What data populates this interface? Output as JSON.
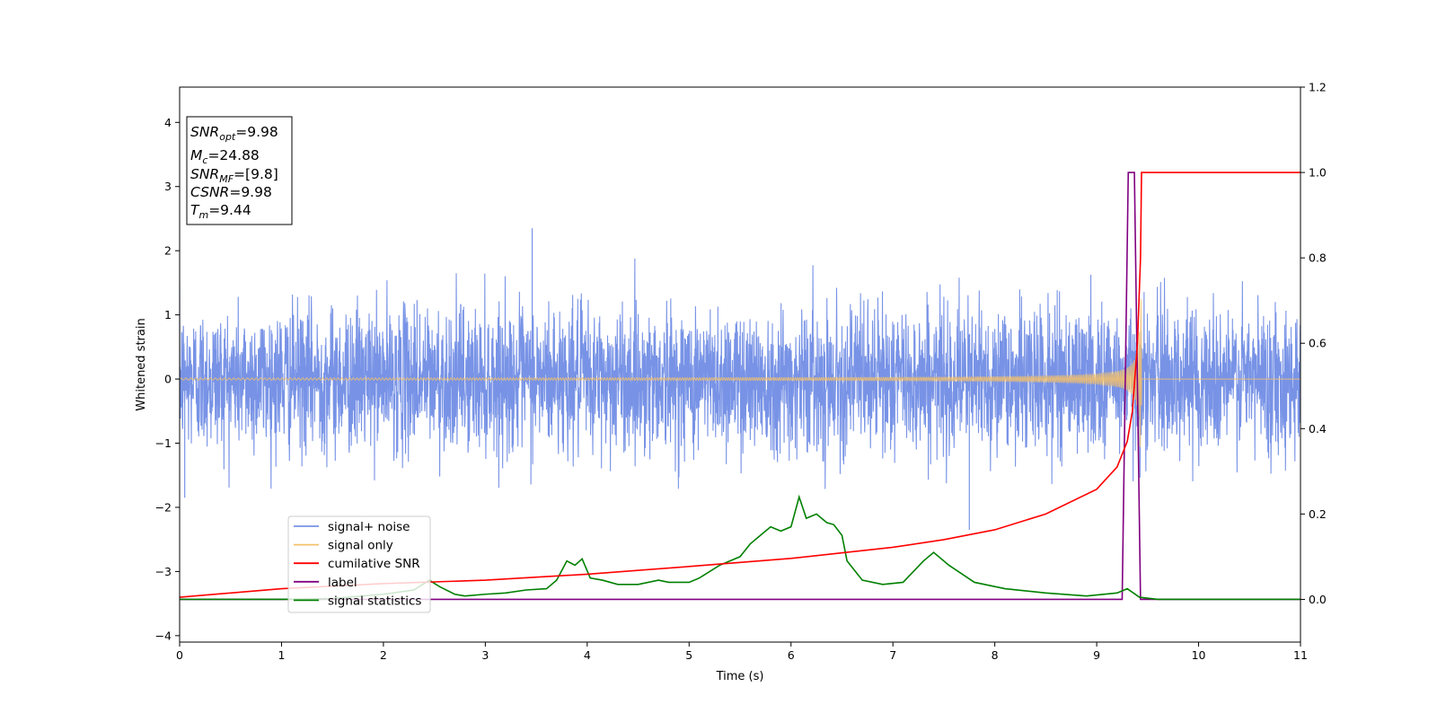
{
  "chart_data": {
    "type": "line",
    "xlabel": "Time (s)",
    "ylabel": "Whitened strain",
    "xlim": [
      0,
      11
    ],
    "ylim_left": [
      -4.1,
      4.55
    ],
    "ylim_right": [
      -0.1,
      1.2
    ],
    "x_ticks": [
      "0",
      "1",
      "2",
      "3",
      "4",
      "5",
      "6",
      "7",
      "8",
      "9",
      "10",
      "11"
    ],
    "y_ticks_left": [
      "−4",
      "−3",
      "−2",
      "−1",
      "0",
      "1",
      "2",
      "3",
      "4"
    ],
    "y_ticks_right": [
      "0.0",
      "0.2",
      "0.4",
      "0.6",
      "0.8",
      "1.0",
      "1.2"
    ],
    "grid": false,
    "legend_position": "lower-left",
    "series": [
      {
        "name": "signal+ noise",
        "axis": "left",
        "color": "#7893e6",
        "description": "whitened noisy strain, roughly -1.7 to 2.3",
        "amplitude_std": 0.55,
        "extremes": [
          [
            2.33,
            1.23
          ],
          [
            3.46,
            2.35
          ],
          [
            7.75,
            -2.35
          ],
          [
            0.05,
            -1.85
          ]
        ]
      },
      {
        "name": "signal only",
        "axis": "left",
        "color": "#f5c16a",
        "chirp": {
          "t_start": 0,
          "t_merge": 9.44,
          "amp_start": 0.01,
          "amp_peak": 1.25,
          "f_start": 20,
          "f_peak": 60
        }
      },
      {
        "name": "cumilative SNR",
        "axis": "right",
        "color": "#ff0000",
        "points": [
          [
            0,
            0.005
          ],
          [
            1,
            0.025
          ],
          [
            2,
            0.037
          ],
          [
            3,
            0.045
          ],
          [
            4,
            0.059
          ],
          [
            5,
            0.077
          ],
          [
            6,
            0.096
          ],
          [
            7,
            0.122
          ],
          [
            7.5,
            0.14
          ],
          [
            8,
            0.163
          ],
          [
            8.5,
            0.2
          ],
          [
            9,
            0.258
          ],
          [
            9.2,
            0.31
          ],
          [
            9.3,
            0.37
          ],
          [
            9.35,
            0.44
          ],
          [
            9.4,
            0.6
          ],
          [
            9.43,
            0.8
          ],
          [
            9.44,
            1.0
          ],
          [
            11,
            1.0
          ]
        ]
      },
      {
        "name": "label",
        "axis": "right",
        "color": "#800080",
        "points": [
          [
            0,
            0.0
          ],
          [
            9.25,
            0.0
          ],
          [
            9.31,
            1.0
          ],
          [
            9.37,
            1.0
          ],
          [
            9.43,
            0.0
          ],
          [
            11,
            0.0
          ]
        ]
      },
      {
        "name": "signal statistics",
        "axis": "right",
        "color": "#008000",
        "points": [
          [
            0,
            0.0
          ],
          [
            1,
            0.0
          ],
          [
            1.5,
            0.002
          ],
          [
            2,
            0.012
          ],
          [
            2.3,
            0.022
          ],
          [
            2.45,
            0.045
          ],
          [
            2.55,
            0.03
          ],
          [
            2.7,
            0.012
          ],
          [
            2.8,
            0.008
          ],
          [
            3.0,
            0.012
          ],
          [
            3.2,
            0.015
          ],
          [
            3.4,
            0.022
          ],
          [
            3.6,
            0.025
          ],
          [
            3.7,
            0.045
          ],
          [
            3.8,
            0.09
          ],
          [
            3.88,
            0.08
          ],
          [
            3.95,
            0.095
          ],
          [
            4.03,
            0.05
          ],
          [
            4.15,
            0.045
          ],
          [
            4.3,
            0.035
          ],
          [
            4.5,
            0.035
          ],
          [
            4.7,
            0.045
          ],
          [
            4.8,
            0.04
          ],
          [
            5.0,
            0.04
          ],
          [
            5.1,
            0.05
          ],
          [
            5.3,
            0.08
          ],
          [
            5.5,
            0.1
          ],
          [
            5.6,
            0.13
          ],
          [
            5.7,
            0.15
          ],
          [
            5.8,
            0.17
          ],
          [
            5.9,
            0.16
          ],
          [
            6.0,
            0.17
          ],
          [
            6.08,
            0.24
          ],
          [
            6.15,
            0.19
          ],
          [
            6.25,
            0.2
          ],
          [
            6.35,
            0.18
          ],
          [
            6.42,
            0.175
          ],
          [
            6.5,
            0.15
          ],
          [
            6.55,
            0.09
          ],
          [
            6.7,
            0.045
          ],
          [
            6.9,
            0.035
          ],
          [
            7.1,
            0.04
          ],
          [
            7.3,
            0.09
          ],
          [
            7.4,
            0.11
          ],
          [
            7.55,
            0.08
          ],
          [
            7.8,
            0.04
          ],
          [
            8.1,
            0.025
          ],
          [
            8.5,
            0.015
          ],
          [
            8.9,
            0.008
          ],
          [
            9.2,
            0.015
          ],
          [
            9.3,
            0.025
          ],
          [
            9.42,
            0.005
          ],
          [
            9.6,
            0.0
          ],
          [
            11,
            0.0
          ]
        ]
      }
    ],
    "annotation_lines": [
      {
        "main": "SNR",
        "sub": "opt",
        "value": "=9.98"
      },
      {
        "main": "M",
        "sub": "c",
        "value": "=24.88"
      },
      {
        "main": "SNR",
        "sub": "MF",
        "value": "=[9.8]"
      },
      {
        "main": "CSNR",
        "sub": "",
        "value": "=9.98"
      },
      {
        "main": "T",
        "sub": "m",
        "value": "=9.44"
      }
    ]
  }
}
